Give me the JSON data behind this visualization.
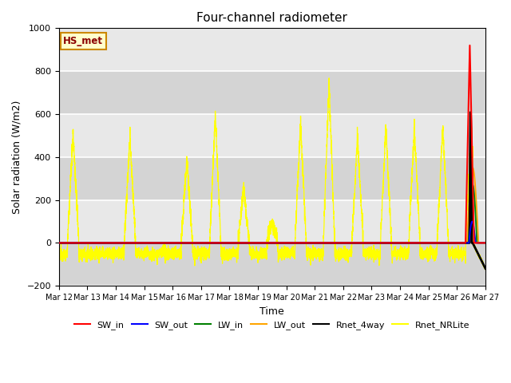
{
  "title": "Four-channel radiometer",
  "xlabel": "Time",
  "ylabel": "Solar radiation (W/m2)",
  "ylim": [
    -200,
    1000
  ],
  "xlim": [
    0,
    15
  ],
  "xtick_labels": [
    "Mar 12",
    "Mar 13",
    "Mar 14",
    "Mar 15",
    "Mar 16",
    "Mar 17",
    "Mar 18",
    "Mar 19",
    "Mar 20",
    "Mar 21",
    "Mar 22",
    "Mar 23",
    "Mar 24",
    "Mar 25",
    "Mar 26",
    "Mar 27"
  ],
  "station_label": "HS_met",
  "title_fontsize": 11,
  "plot_bg_color": "#e8e8e8",
  "fig_bg_color": "#ffffff",
  "grid_color": "#ffffff",
  "band_colors": [
    "#d8d8d8",
    "#e8e8e8"
  ],
  "peak_amps": [
    510,
    0,
    500,
    0,
    390,
    590,
    250,
    100,
    560,
    750,
    500,
    540,
    540,
    540,
    550,
    600
  ],
  "night_level": -50,
  "night_std": 15
}
